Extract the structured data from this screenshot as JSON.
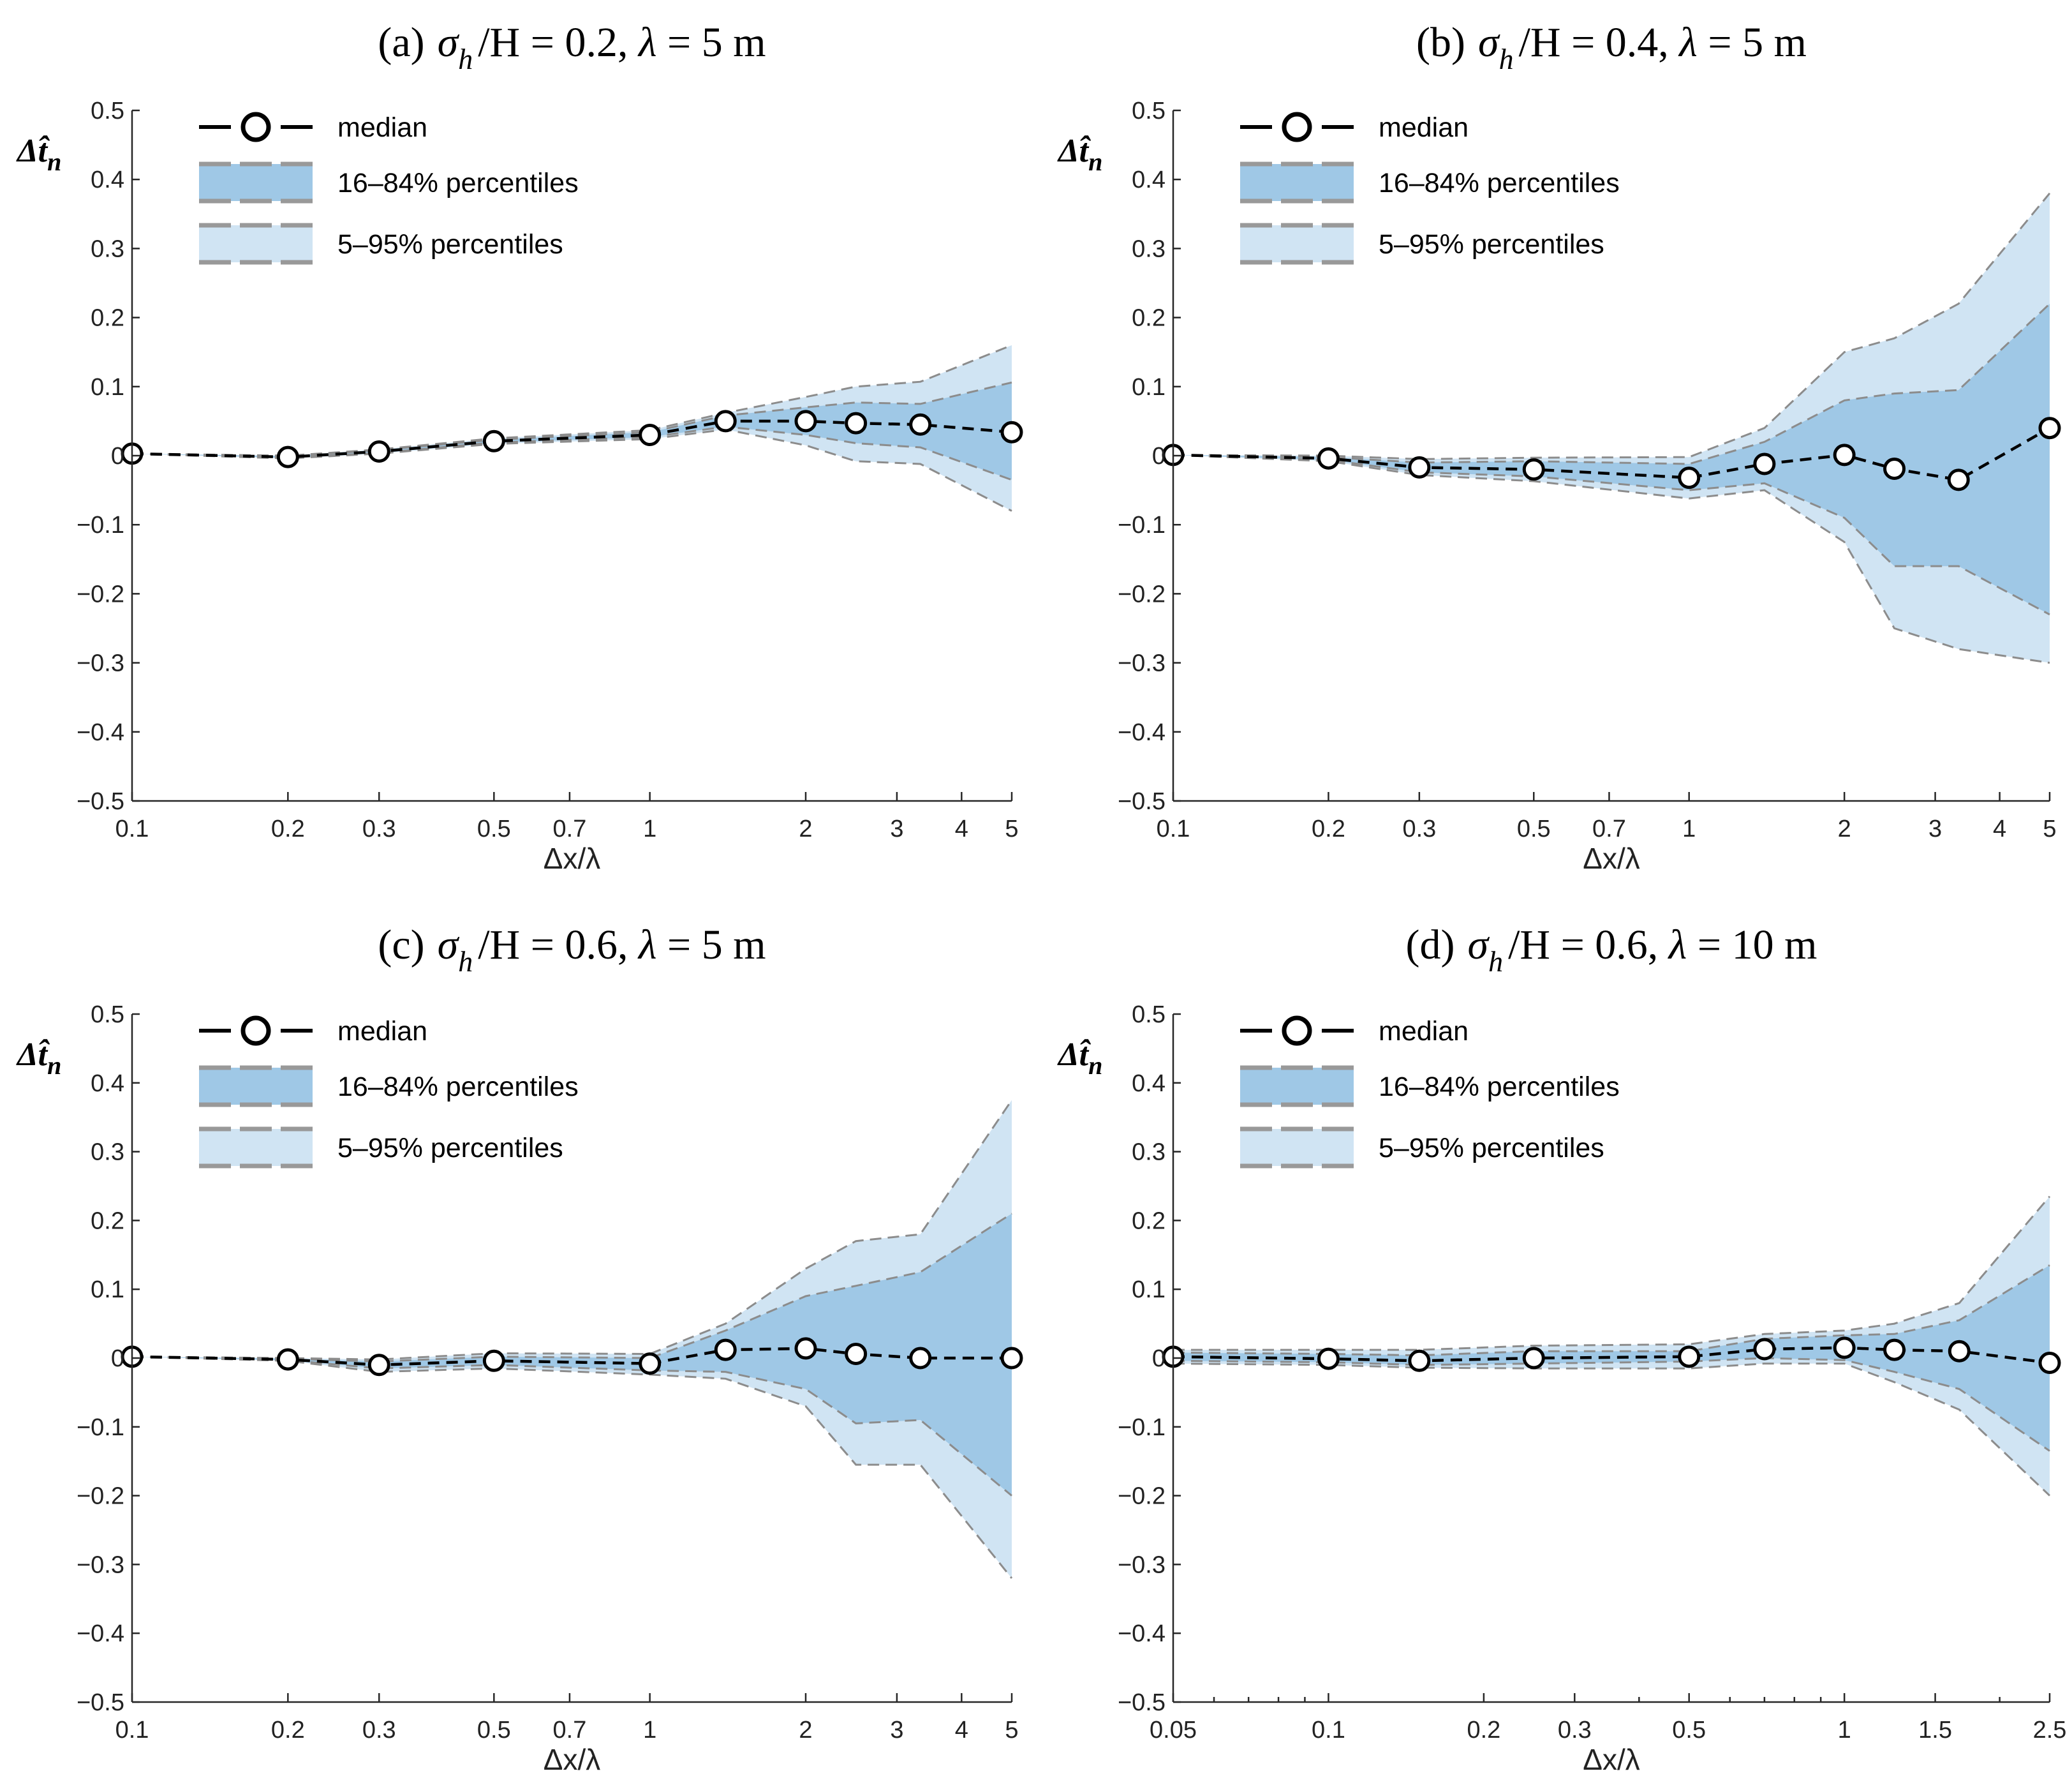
{
  "legend": {
    "median": "median",
    "band_inner": "16–84% percentiles",
    "band_outer": "5–95% percentiles"
  },
  "colors": {
    "inner": "#9fc8e6",
    "outer": "#d0e4f3",
    "outline": "#8c8c8c",
    "median": "#000000"
  },
  "chart_data": [
    {
      "type": "area",
      "title_parts": [
        "(a)",
        "σ",
        "h",
        "/H = 0.2, ",
        "λ",
        " = 5 m"
      ],
      "xlabel": "Δx/λ",
      "ylabel": "Δt̂",
      "ylabel_sub": "n",
      "xscale": "log",
      "xlim": [
        0.1,
        5
      ],
      "ylim": [
        -0.5,
        0.5
      ],
      "xticks": [
        0.1,
        0.2,
        0.3,
        0.5,
        0.7,
        1,
        2,
        3,
        4,
        5
      ],
      "xtick_labels": [
        "0.1",
        "0.2",
        "0.3",
        "0.5",
        "0.7",
        "1",
        "2",
        "3",
        "4",
        "5"
      ],
      "yticks": [
        -0.5,
        -0.4,
        -0.3,
        -0.2,
        -0.1,
        0,
        0.1,
        0.2,
        0.3,
        0.4,
        0.5
      ],
      "ytick_labels": [
        "−0.5",
        "−0.4",
        "−0.3",
        "−0.2",
        "−0.1",
        "0",
        "0.1",
        "0.2",
        "0.3",
        "0.4",
        "0.5"
      ],
      "x": [
        0.1,
        0.2,
        0.3,
        0.5,
        1,
        1.4,
        2,
        2.5,
        3.33,
        5
      ],
      "median": [
        0.003,
        -0.002,
        0.006,
        0.021,
        0.03,
        0.05,
        0.05,
        0.047,
        0.045,
        0.034
      ],
      "p16": [
        0.003,
        -0.003,
        0.004,
        0.019,
        0.027,
        0.042,
        0.03,
        0.018,
        0.012,
        -0.035
      ],
      "p84": [
        0.003,
        -0.001,
        0.008,
        0.023,
        0.034,
        0.058,
        0.07,
        0.077,
        0.075,
        0.106
      ],
      "p5": [
        0.003,
        -0.004,
        0.003,
        0.017,
        0.024,
        0.038,
        0.015,
        -0.008,
        -0.012,
        -0.08
      ],
      "p95": [
        0.003,
        0.0,
        0.009,
        0.025,
        0.037,
        0.062,
        0.085,
        0.1,
        0.107,
        0.16
      ]
    },
    {
      "type": "area",
      "title_parts": [
        "(b)",
        "σ",
        "h",
        "/H = 0.4, ",
        "λ",
        " = 5 m"
      ],
      "xlabel": "Δx/λ",
      "ylabel": "Δt̂",
      "ylabel_sub": "n",
      "xscale": "log",
      "xlim": [
        0.1,
        5
      ],
      "ylim": [
        -0.5,
        0.5
      ],
      "xticks": [
        0.1,
        0.2,
        0.3,
        0.5,
        0.7,
        1,
        2,
        3,
        4,
        5
      ],
      "xtick_labels": [
        "0.1",
        "0.2",
        "0.3",
        "0.5",
        "0.7",
        "1",
        "2",
        "3",
        "4",
        "5"
      ],
      "yticks": [
        -0.5,
        -0.4,
        -0.3,
        -0.2,
        -0.1,
        0,
        0.1,
        0.2,
        0.3,
        0.4,
        0.5
      ],
      "ytick_labels": [
        "−0.5",
        "−0.4",
        "−0.3",
        "−0.2",
        "−0.1",
        "0",
        "0.1",
        "0.2",
        "0.3",
        "0.4",
        "0.5"
      ],
      "x": [
        0.1,
        0.2,
        0.3,
        0.5,
        1,
        1.4,
        2,
        2.5,
        3.33,
        5
      ],
      "median": [
        0.001,
        -0.004,
        -0.017,
        -0.02,
        -0.032,
        -0.012,
        0.001,
        -0.019,
        -0.035,
        0.04
      ],
      "p16": [
        0.001,
        -0.006,
        -0.024,
        -0.03,
        -0.05,
        -0.04,
        -0.09,
        -0.16,
        -0.16,
        -0.23
      ],
      "p84": [
        0.001,
        -0.002,
        -0.01,
        -0.008,
        -0.012,
        0.02,
        0.08,
        0.09,
        0.095,
        0.22
      ],
      "p5": [
        0.001,
        -0.008,
        -0.028,
        -0.037,
        -0.062,
        -0.05,
        -0.125,
        -0.25,
        -0.28,
        -0.3
      ],
      "p95": [
        0.001,
        0.0,
        -0.005,
        -0.003,
        -0.002,
        0.04,
        0.15,
        0.17,
        0.22,
        0.38
      ]
    },
    {
      "type": "area",
      "title_parts": [
        "(c)",
        "σ",
        "h",
        "/H = 0.6, ",
        "λ",
        " = 5 m"
      ],
      "xlabel": "Δx/λ",
      "ylabel": "Δt̂",
      "ylabel_sub": "n",
      "xscale": "log",
      "xlim": [
        0.1,
        5
      ],
      "ylim": [
        -0.5,
        0.5
      ],
      "xticks": [
        0.1,
        0.2,
        0.3,
        0.5,
        0.7,
        1,
        2,
        3,
        4,
        5
      ],
      "xtick_labels": [
        "0.1",
        "0.2",
        "0.3",
        "0.5",
        "0.7",
        "1",
        "2",
        "3",
        "4",
        "5"
      ],
      "yticks": [
        -0.5,
        -0.4,
        -0.3,
        -0.2,
        -0.1,
        0,
        0.1,
        0.2,
        0.3,
        0.4,
        0.5
      ],
      "ytick_labels": [
        "−0.5",
        "−0.4",
        "−0.3",
        "−0.2",
        "−0.1",
        "0",
        "0.1",
        "0.2",
        "0.3",
        "0.4",
        "0.5"
      ],
      "x": [
        0.1,
        0.2,
        0.3,
        0.5,
        1,
        1.4,
        2,
        2.5,
        3.33,
        5
      ],
      "median": [
        0.002,
        -0.002,
        -0.01,
        -0.004,
        -0.008,
        0.012,
        0.014,
        0.006,
        0.0,
        0.0
      ],
      "p16": [
        0.002,
        -0.003,
        -0.015,
        -0.01,
        -0.018,
        -0.02,
        -0.045,
        -0.095,
        -0.09,
        -0.2
      ],
      "p84": [
        0.002,
        -0.001,
        -0.005,
        0.002,
        0.0,
        0.04,
        0.09,
        0.105,
        0.125,
        0.21
      ],
      "p5": [
        0.002,
        -0.004,
        -0.02,
        -0.015,
        -0.024,
        -0.03,
        -0.07,
        -0.155,
        -0.155,
        -0.32
      ],
      "p95": [
        0.002,
        0.0,
        -0.002,
        0.007,
        0.006,
        0.05,
        0.13,
        0.17,
        0.18,
        0.375
      ]
    },
    {
      "type": "area",
      "title_parts": [
        "(d)",
        "σ",
        "h",
        "/H = 0.6, ",
        "λ",
        " = 10 m"
      ],
      "xlabel": "Δx/λ",
      "ylabel": "Δt̂",
      "ylabel_sub": "n",
      "xscale": "log",
      "xlim": [
        0.05,
        2.5
      ],
      "ylim": [
        -0.5,
        0.5
      ],
      "xticks": [
        0.05,
        0.1,
        0.2,
        0.3,
        0.5,
        1,
        1.5,
        2.5
      ],
      "xtick_labels": [
        "0.05",
        "0.1",
        "0.2",
        "0.3",
        "0.5",
        "1",
        "1.5",
        "2.5"
      ],
      "minor_xticks": [
        0.06,
        0.07,
        0.08,
        0.09,
        0.4,
        0.6,
        0.7,
        0.8,
        0.9,
        2
      ],
      "yticks": [
        -0.5,
        -0.4,
        -0.3,
        -0.2,
        -0.1,
        0,
        0.1,
        0.2,
        0.3,
        0.4,
        0.5
      ],
      "ytick_labels": [
        "−0.5",
        "−0.4",
        "−0.3",
        "−0.2",
        "−0.1",
        "0",
        "0.1",
        "0.2",
        "0.3",
        "0.4",
        "0.5"
      ],
      "x": [
        0.05,
        0.1,
        0.15,
        0.25,
        0.5,
        0.7,
        1,
        1.25,
        1.67,
        2.5
      ],
      "median": [
        0.002,
        -0.001,
        -0.004,
        0.0,
        0.002,
        0.013,
        0.015,
        0.012,
        0.01,
        -0.007
      ],
      "p16": [
        -0.004,
        -0.006,
        -0.01,
        -0.008,
        -0.005,
        0.0,
        -0.003,
        -0.02,
        -0.045,
        -0.135
      ],
      "p84": [
        0.008,
        0.006,
        0.004,
        0.01,
        0.01,
        0.028,
        0.033,
        0.035,
        0.055,
        0.135
      ],
      "p5": [
        -0.008,
        -0.01,
        -0.014,
        -0.015,
        -0.015,
        -0.008,
        -0.008,
        -0.035,
        -0.075,
        -0.2
      ],
      "p95": [
        0.012,
        0.012,
        0.012,
        0.018,
        0.02,
        0.035,
        0.04,
        0.05,
        0.08,
        0.235
      ]
    }
  ]
}
